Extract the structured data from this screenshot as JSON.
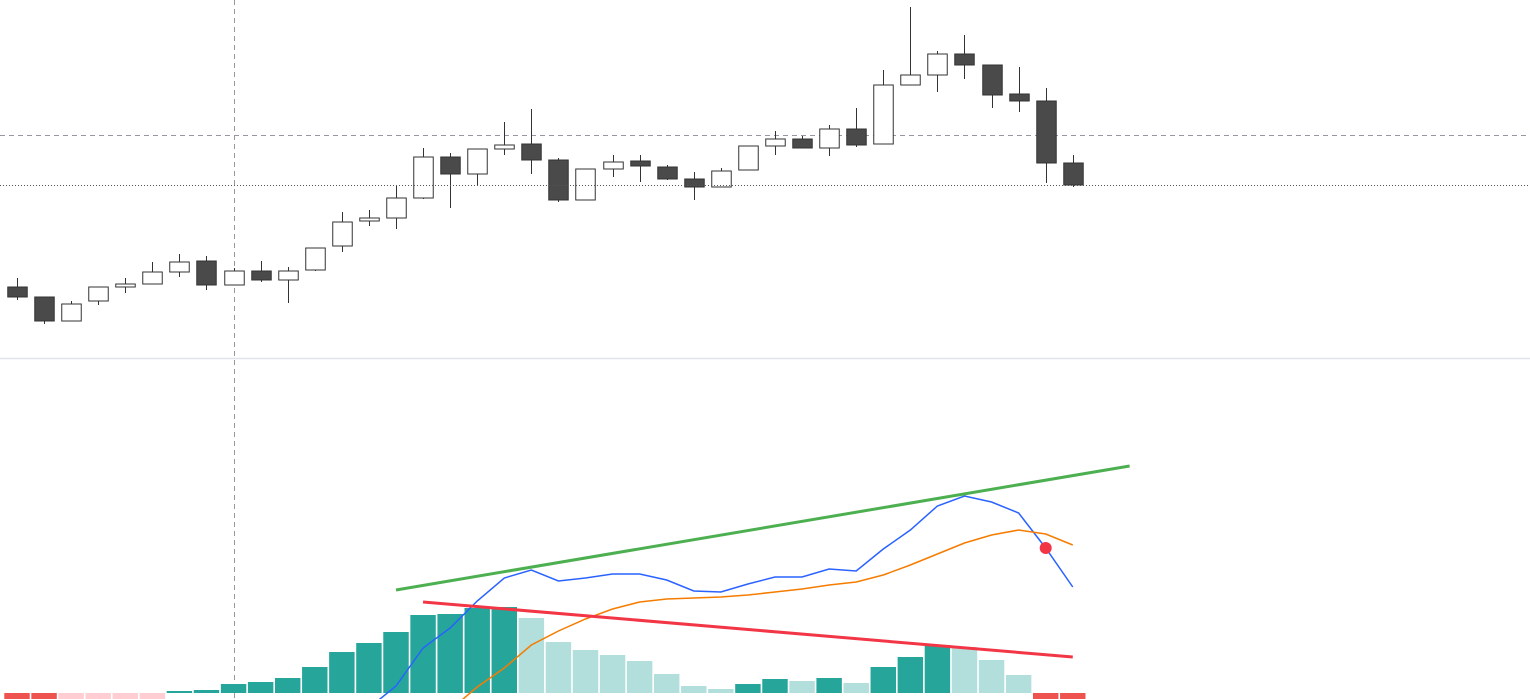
{
  "chart_data": [
    {
      "type": "candlestick",
      "x": [
        1,
        2,
        3,
        4,
        5,
        6,
        7,
        8,
        9,
        10,
        11,
        12,
        13,
        14,
        15,
        16,
        17,
        18,
        19,
        20,
        21,
        22,
        23,
        24,
        25,
        26,
        27,
        28,
        29,
        30,
        31,
        32,
        33,
        34,
        35,
        36,
        37,
        38,
        39,
        40
      ],
      "open": [
        71,
        61,
        37,
        57,
        71,
        74,
        86,
        97,
        73,
        87,
        78,
        88,
        112,
        137,
        140,
        160,
        201,
        184,
        209,
        214,
        198,
        158,
        189,
        197,
        191,
        179,
        171,
        188,
        212,
        219,
        210,
        229,
        214,
        273,
        283,
        304,
        293,
        264,
        257,
        195
      ],
      "high": [
        80,
        61,
        57,
        71,
        80,
        96,
        104,
        102,
        90,
        97,
        91,
        110,
        146,
        148,
        172,
        210,
        205,
        209,
        236,
        249,
        200,
        189,
        203,
        203,
        193,
        186,
        190,
        212,
        227,
        222,
        233,
        250,
        288,
        351,
        307,
        323,
        293,
        291,
        270,
        203
      ],
      "low": [
        58,
        34,
        37,
        53,
        65,
        74,
        81,
        68,
        73,
        76,
        55,
        87,
        106,
        132,
        129,
        159,
        150,
        173,
        203,
        184,
        156,
        158,
        181,
        176,
        178,
        158,
        171,
        188,
        203,
        210,
        202,
        211,
        214,
        273,
        266,
        279,
        250,
        246,
        175,
        171
      ],
      "close": [
        61,
        37,
        54,
        71,
        74,
        86,
        96,
        73,
        87,
        78,
        87,
        110,
        136,
        140,
        160,
        201,
        184,
        209,
        213,
        198,
        158,
        189,
        196,
        192,
        179,
        171,
        187,
        212,
        219,
        210,
        229,
        213,
        273,
        283,
        304,
        293,
        263,
        257,
        195,
        173
      ],
      "up_color": "#ffffff",
      "down_color": "#4a4a4a",
      "border_color": "#333333",
      "xlim": [
        0.372,
        56.89
      ],
      "ylim": [
        0,
        358
      ]
    },
    {
      "type": "macd",
      "x": [
        1,
        2,
        3,
        4,
        5,
        6,
        7,
        8,
        9,
        10,
        11,
        12,
        13,
        14,
        15,
        16,
        17,
        18,
        19,
        20,
        21,
        22,
        23,
        24,
        25,
        26,
        27,
        28,
        29,
        30,
        31,
        32,
        33,
        34,
        35,
        36,
        37,
        38,
        39,
        40
      ],
      "histogram": [
        -8,
        -10,
        -9,
        -8,
        -7,
        -6,
        2,
        3,
        9,
        11,
        15,
        26,
        41,
        50,
        61,
        78,
        79,
        85,
        86,
        75,
        51,
        43,
        38,
        32,
        19,
        7,
        4,
        9,
        14,
        12,
        15,
        10,
        26,
        36,
        48,
        46,
        33,
        18,
        -10,
        -12
      ],
      "histogram_colors": {
        "up_rising": "#26a69a",
        "up_falling": "#b2dfdb",
        "down_falling": "#ef5350",
        "down_rising": "#ffcdd2"
      },
      "series": [
        {
          "color": "#2962ff",
          "values": [
            null,
            null,
            null,
            null,
            null,
            null,
            null,
            null,
            null,
            null,
            null,
            null,
            null,
            -15,
            7,
            45,
            65,
            92,
            115,
            123,
            112,
            115,
            119,
            119,
            113,
            102,
            101,
            109,
            116,
            116,
            124,
            122,
            144,
            163,
            187,
            197,
            191,
            180,
            145,
            106
          ]
        },
        {
          "color": "#f57c00",
          "values": [
            null,
            null,
            null,
            null,
            null,
            null,
            null,
            null,
            null,
            null,
            null,
            null,
            null,
            null,
            null,
            null,
            -17,
            6,
            25,
            48,
            62,
            74,
            84,
            91,
            94,
            95,
            96,
            98,
            101,
            104,
            108,
            111,
            118,
            128,
            139,
            150,
            158,
            163,
            159,
            148
          ]
        }
      ],
      "marker": {
        "series": 0,
        "index": 38,
        "color": "#f23645"
      },
      "lines": [
        {
          "color": "#4caf50",
          "x": [
            15,
            42.1
          ],
          "values": [
            103,
            227
          ]
        },
        {
          "color": "#f23645",
          "x": [
            16,
            40
          ],
          "values": [
            91,
            36
          ]
        }
      ],
      "xlim": [
        0.372,
        56.89
      ],
      "ylim": [
        -6,
        335
      ]
    }
  ]
}
